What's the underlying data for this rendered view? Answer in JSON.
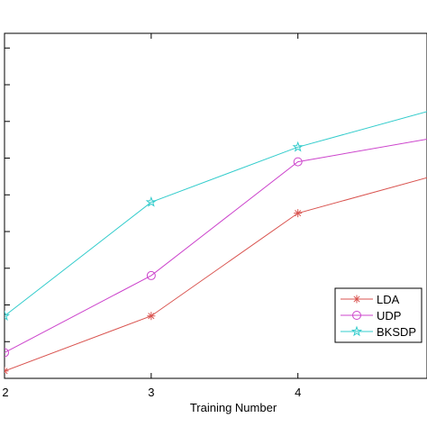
{
  "chart_data": {
    "type": "line",
    "title": "",
    "xlabel": "Training Number",
    "ylabel": "",
    "x": [
      2,
      3,
      4,
      5
    ],
    "xticks": [
      "2",
      "3",
      "4"
    ],
    "xlim": [
      2,
      4.88
    ],
    "ylim": [
      0,
      9.4
    ],
    "grid": false,
    "legend_position": "bottom-right",
    "series": [
      {
        "name": "LDA",
        "color": "#d9534f",
        "marker": "asterisk",
        "values": [
          0.2,
          1.7,
          4.5,
          5.6
        ]
      },
      {
        "name": "UDP",
        "color": "#cc44cc",
        "marker": "circle",
        "values": [
          0.7,
          2.8,
          5.9,
          6.6
        ]
      },
      {
        "name": "BKSDP",
        "color": "#33cccc",
        "marker": "star",
        "values": [
          1.7,
          4.8,
          6.3,
          7.4
        ]
      }
    ]
  }
}
